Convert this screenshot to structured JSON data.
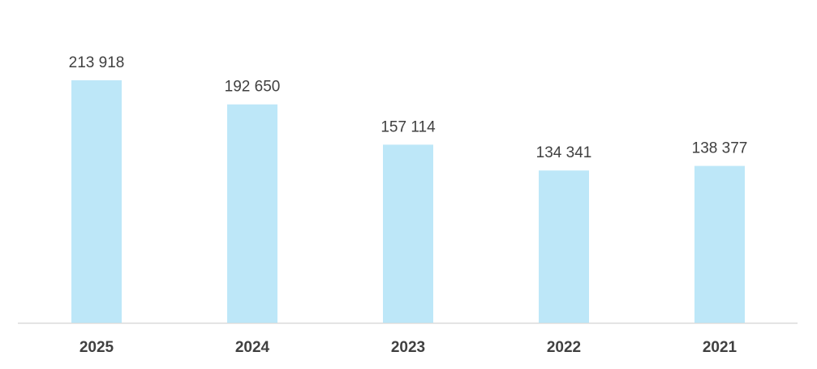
{
  "chart_data": {
    "type": "bar",
    "categories": [
      "2025",
      "2024",
      "2023",
      "2022",
      "2021"
    ],
    "values": [
      213918,
      192650,
      157114,
      134341,
      138377
    ],
    "value_labels": [
      "213 918",
      "192 650",
      "157 114",
      "134 341",
      "138 377"
    ],
    "color": "#bde7f8"
  }
}
